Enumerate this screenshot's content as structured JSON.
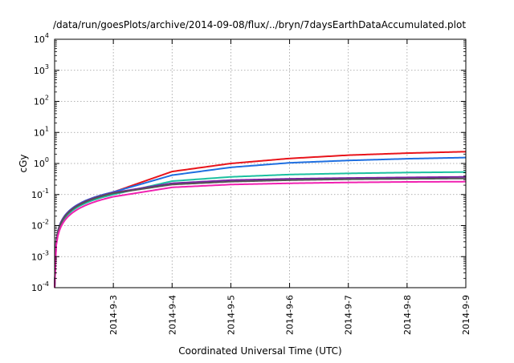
{
  "chart_data": {
    "type": "line",
    "title": "/data/run/goesPlots/archive/2014-09-08/flux/../bryn/7daysEarthDataAccumulated.plot",
    "xlabel": "Coordinated Universal Time (UTC)",
    "ylabel": "cGy",
    "yscale": "log",
    "ylim": [
      0.0001,
      10000
    ],
    "xlim": [
      "2014-9-2",
      "2014-9-9"
    ],
    "x_ticks": [
      "2014-9-3",
      "2014-9-4",
      "2014-9-5",
      "2014-9-6",
      "2014-9-7",
      "2014-9-8",
      "2014-9-9"
    ],
    "y_ticks": [
      {
        "base": "10",
        "exp": "4"
      },
      {
        "base": "10",
        "exp": "3"
      },
      {
        "base": "10",
        "exp": "2"
      },
      {
        "base": "10",
        "exp": "1"
      },
      {
        "base": "10",
        "exp": "0"
      },
      {
        "base": "10",
        "exp": "-1"
      },
      {
        "base": "10",
        "exp": "-2"
      },
      {
        "base": "10",
        "exp": "-3"
      },
      {
        "base": "10",
        "exp": "-4"
      }
    ],
    "grid": true,
    "x": [
      "2014-9-2",
      "2014-9-3",
      "2014-9-4",
      "2014-9-5",
      "2014-9-6",
      "2014-9-7",
      "2014-9-8",
      "2014-9-9"
    ],
    "series": [
      {
        "color": "#e8141b",
        "values": [
          0.0001,
          0.12,
          0.55,
          1.0,
          1.45,
          1.85,
          2.15,
          2.4
        ]
      },
      {
        "color": "#1f6fe0",
        "values": [
          0.0001,
          0.12,
          0.42,
          0.75,
          1.05,
          1.25,
          1.42,
          1.55
        ]
      },
      {
        "color": "#1cc0a0",
        "values": [
          0.0001,
          0.1,
          0.27,
          0.37,
          0.44,
          0.48,
          0.51,
          0.53
        ]
      },
      {
        "color": "#7a1fa2",
        "values": [
          0.0001,
          0.115,
          0.23,
          0.29,
          0.32,
          0.34,
          0.355,
          0.37
        ]
      },
      {
        "color": "#555555",
        "values": [
          0.0001,
          0.11,
          0.21,
          0.26,
          0.29,
          0.31,
          0.32,
          0.33
        ]
      },
      {
        "color": "#f020b0",
        "values": [
          0.0001,
          0.085,
          0.17,
          0.21,
          0.23,
          0.245,
          0.255,
          0.26
        ]
      }
    ]
  }
}
